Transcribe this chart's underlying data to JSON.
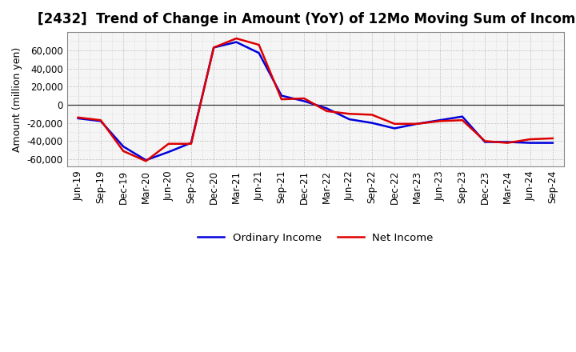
{
  "title": "[2432]  Trend of Change in Amount (YoY) of 12Mo Moving Sum of Incomes",
  "ylabel": "Amount (million yen)",
  "ylim": [
    -68000,
    80000
  ],
  "yticks": [
    -60000,
    -40000,
    -20000,
    0,
    20000,
    40000,
    60000
  ],
  "x_labels": [
    "Jun-19",
    "Sep-19",
    "Dec-19",
    "Mar-20",
    "Jun-20",
    "Sep-20",
    "Dec-20",
    "Mar-21",
    "Jun-21",
    "Sep-21",
    "Dec-21",
    "Mar-22",
    "Jun-22",
    "Sep-22",
    "Dec-22",
    "Mar-23",
    "Jun-23",
    "Sep-23",
    "Dec-23",
    "Mar-24",
    "Jun-24",
    "Sep-24"
  ],
  "ordinary_income": [
    -15000,
    -18000,
    -46000,
    -61000,
    -52000,
    -42000,
    63000,
    69000,
    57000,
    10000,
    4000,
    -4000,
    -16000,
    -20000,
    -26000,
    -21000,
    -17000,
    -13000,
    -41000,
    -41000,
    -42000,
    -42000
  ],
  "net_income": [
    -14000,
    -17000,
    -51000,
    -62000,
    -43000,
    -43000,
    63000,
    73000,
    66000,
    6000,
    7000,
    -7000,
    -10000,
    -11000,
    -21000,
    -21000,
    -18000,
    -17000,
    -40000,
    -42000,
    -38000,
    -37000
  ],
  "ordinary_color": "#0000dd",
  "net_color": "#dd0000",
  "line_width": 1.8,
  "legend_labels": [
    "Ordinary Income",
    "Net Income"
  ],
  "background_color": "#ffffff",
  "plot_bg_color": "#f5f5f5",
  "grid_color": "#888888",
  "title_fontsize": 12,
  "axis_fontsize": 9,
  "tick_fontsize": 8.5
}
